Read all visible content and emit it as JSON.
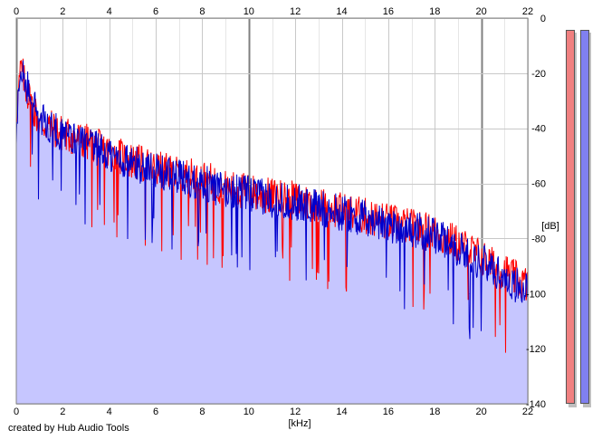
{
  "footer": {
    "credit": "created by Hub Audio Tools"
  },
  "chart_data": {
    "type": "line",
    "xlabel": "[kHz]",
    "ylabel": "[dB]",
    "xlim": [
      0,
      22
    ],
    "ylim": [
      -140,
      0
    ],
    "x_ticks": [
      0,
      2,
      4,
      6,
      8,
      10,
      12,
      14,
      16,
      18,
      20,
      22
    ],
    "y_ticks": [
      0,
      -20,
      -40,
      -60,
      -80,
      -100,
      -120,
      -140
    ],
    "grid": true,
    "series": [
      {
        "color": "#ff0000",
        "x": [
          0,
          0.2,
          0.4,
          0.6,
          1,
          1.5,
          2,
          3,
          4,
          5,
          6,
          7,
          8,
          9,
          10,
          11,
          12,
          13,
          14,
          15,
          16,
          17,
          18,
          19,
          20,
          20.5,
          21,
          21.5,
          22
        ],
        "y": [
          -35,
          -18,
          -25,
          -30,
          -38,
          -40,
          -42,
          -45,
          -49,
          -52,
          -55,
          -57,
          -58,
          -62,
          -63,
          -65,
          -66,
          -68,
          -70,
          -72,
          -74,
          -76,
          -78,
          -82,
          -87,
          -90,
          -92,
          -95,
          -97
        ]
      },
      {
        "color": "#0000cc",
        "x": [
          0,
          0.2,
          0.4,
          0.6,
          1,
          1.5,
          2,
          3,
          4,
          5,
          6,
          7,
          8,
          9,
          10,
          11,
          12,
          13,
          14,
          15,
          16,
          17,
          18,
          19,
          20,
          20.5,
          21,
          21.5,
          22
        ],
        "y": [
          -40,
          -20,
          -24,
          -28,
          -37,
          -40,
          -43,
          -46,
          -50,
          -53,
          -56,
          -58,
          -60,
          -63,
          -64,
          -66,
          -67,
          -69,
          -71,
          -73,
          -75,
          -77,
          -79,
          -84,
          -89,
          -91,
          -94,
          -97,
          -99
        ]
      }
    ]
  },
  "meters": {
    "left": {
      "color": "#f08080",
      "level": 1.0
    },
    "right": {
      "color": "#8080f0",
      "level": 1.0
    }
  }
}
